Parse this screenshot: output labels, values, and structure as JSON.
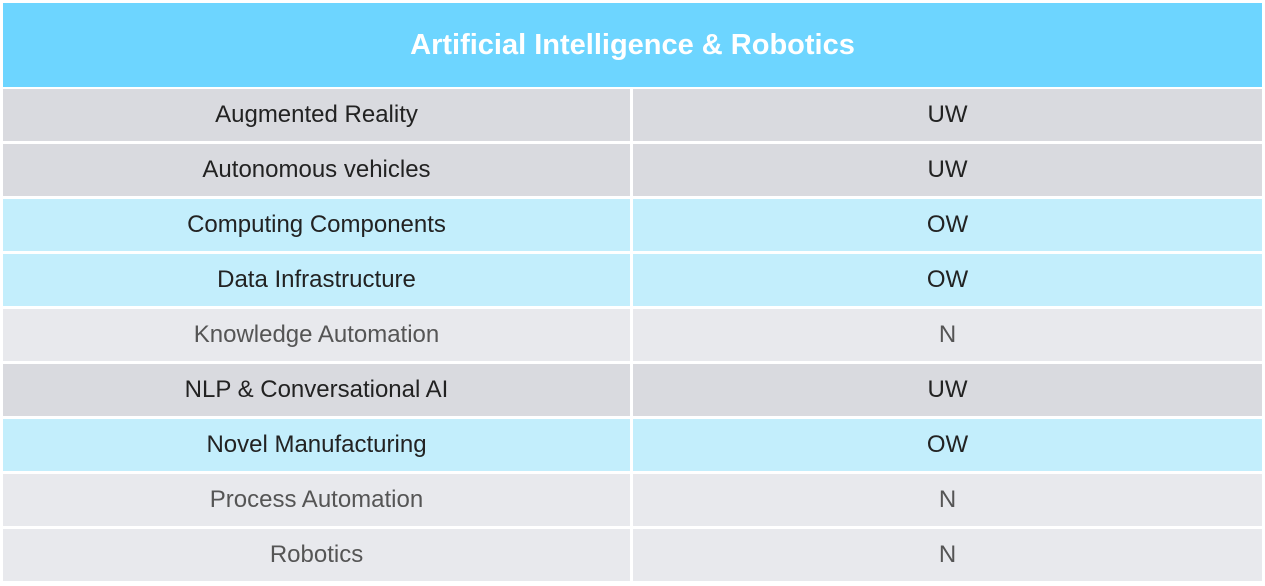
{
  "table": {
    "title": "Artificial Intelligence & Robotics",
    "rows": [
      [
        "Augmented Reality",
        "UW"
      ],
      [
        "Autonomous vehicles",
        "UW"
      ],
      [
        "Computing Components",
        "OW"
      ],
      [
        "Data Infrastructure",
        "OW"
      ],
      [
        "Knowledge Automation",
        "N"
      ],
      [
        "NLP & Conversational AI",
        "UW"
      ],
      [
        "Novel Manufacturing",
        "OW"
      ],
      [
        "Process Automation",
        "N"
      ],
      [
        "Robotics",
        "N"
      ]
    ]
  }
}
